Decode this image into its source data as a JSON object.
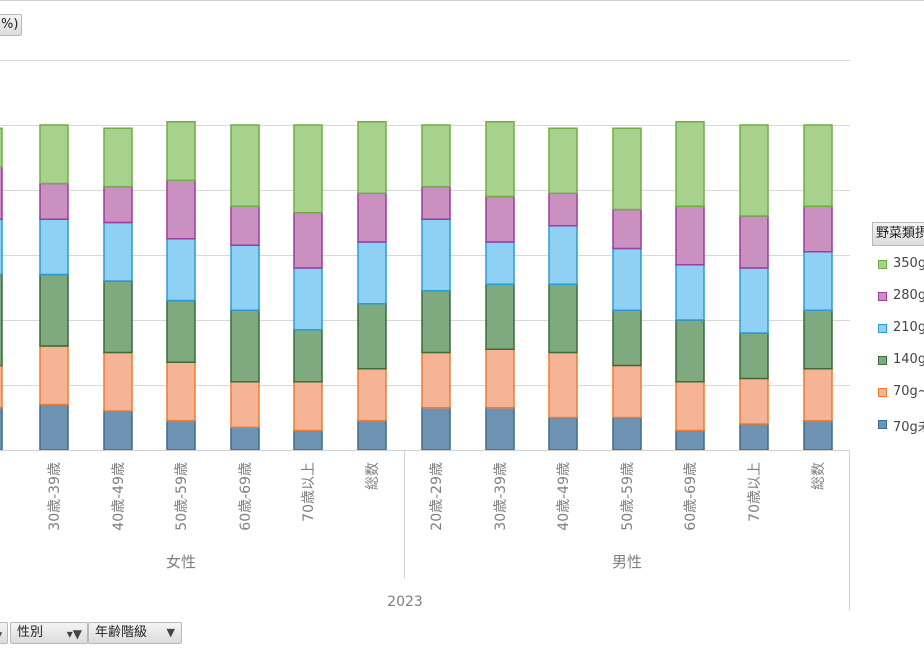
{
  "header": {
    "field_title": "%)"
  },
  "filters": {
    "field1_label": "",
    "field2_label": "性別",
    "field3_label": "年齢階級"
  },
  "legend": {
    "title": "野菜類摂",
    "items": [
      {
        "label": "350g",
        "fill": "#a9d18e",
        "stroke": "#70ad47"
      },
      {
        "label": "280g",
        "fill": "#c990c0",
        "stroke": "#9e3b9e"
      },
      {
        "label": "210g",
        "fill": "#8fd0f5",
        "stroke": "#2e9bd6"
      },
      {
        "label": "140g",
        "fill": "#7fa97f",
        "stroke": "#3a6b3a"
      },
      {
        "label": "70g~",
        "fill": "#f6b497",
        "stroke": "#ed7d31"
      },
      {
        "label": "70g未",
        "fill": "#6f93b3",
        "stroke": "#3b6b91"
      }
    ]
  },
  "chart_data": {
    "type": "bar",
    "stacked": true,
    "ylim": [
      0,
      100
    ],
    "grid": true,
    "year": "2023",
    "groups": [
      {
        "name": "女性",
        "categories": [
          "30歳-39歳",
          "40歳-49歳",
          "50歳-59歳",
          "60歳-69歳",
          "70歳以上",
          "総数"
        ]
      },
      {
        "name": "男性",
        "categories": [
          "20歳-29歳",
          "30歳-39歳",
          "40歳-49歳",
          "50歳-59歳",
          "60歳-69歳",
          "70歳以上",
          "総数"
        ]
      }
    ],
    "partial_left_column": {
      "values_bottom_to_top": [
        13,
        13,
        28,
        17,
        16,
        12
      ]
    },
    "series_bottom_to_top": [
      {
        "name": "70g未",
        "values": [
          14,
          12,
          9,
          7,
          6,
          9,
          13,
          13,
          10,
          10,
          6,
          8,
          9
        ]
      },
      {
        "name": "70g~",
        "values": [
          18,
          18,
          18,
          14,
          15,
          16,
          17,
          18,
          20,
          16,
          15,
          14,
          16
        ]
      },
      {
        "name": "140g",
        "values": [
          22,
          22,
          19,
          22,
          16,
          20,
          19,
          20,
          21,
          17,
          19,
          14,
          18
        ]
      },
      {
        "name": "210g",
        "values": [
          17,
          18,
          19,
          20,
          19,
          19,
          22,
          13,
          18,
          19,
          17,
          20,
          18
        ]
      },
      {
        "name": "280g",
        "values": [
          11,
          11,
          18,
          12,
          17,
          15,
          10,
          14,
          10,
          12,
          18,
          16,
          14
        ]
      },
      {
        "name": "350g",
        "values": [
          18,
          18,
          18,
          25,
          27,
          22,
          19,
          23,
          20,
          25,
          26,
          28,
          25
        ]
      }
    ]
  }
}
